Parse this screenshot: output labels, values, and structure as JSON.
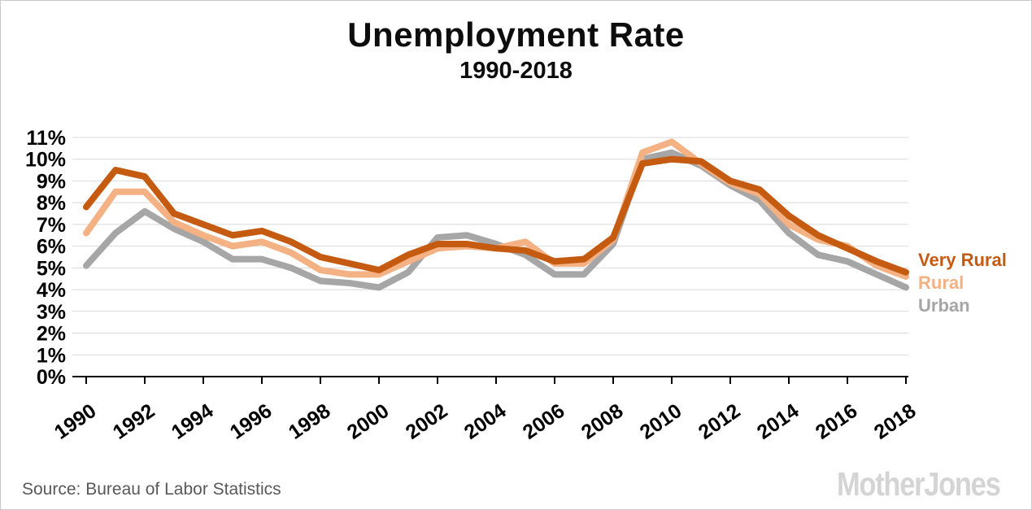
{
  "title": "Unemployment Rate",
  "subtitle": "1990-2018",
  "source": "Source: Bureau of Labor Statistics",
  "logo": "MotherJones",
  "colors": {
    "very_rural": "#C55A11",
    "rural": "#F4B183",
    "urban": "#A6A6A6",
    "gridline": "#D9D9D9",
    "axis": "#000000",
    "tick_label": "#000000",
    "source_text": "#595959",
    "logo_gray": "#D4D4D4"
  },
  "chart_data": {
    "type": "line",
    "title": "Unemployment Rate",
    "subtitle": "1990-2018",
    "xlabel": "",
    "ylabel": "",
    "ylim": [
      0,
      11
    ],
    "ytick_step": 1,
    "ytick_suffix": "%",
    "grid": true,
    "legend_position": "right",
    "xticks": [
      1990,
      1992,
      1994,
      1996,
      1998,
      2000,
      2002,
      2004,
      2006,
      2008,
      2010,
      2012,
      2014,
      2016,
      2018
    ],
    "x": [
      1990,
      1991,
      1992,
      1993,
      1994,
      1995,
      1996,
      1997,
      1998,
      1999,
      2000,
      2001,
      2002,
      2003,
      2004,
      2005,
      2006,
      2007,
      2008,
      2009,
      2010,
      2011,
      2012,
      2013,
      2014,
      2015,
      2016,
      2017,
      2018
    ],
    "series": [
      {
        "name": "Urban",
        "color": "#A6A6A6",
        "values": [
          5.1,
          6.6,
          7.6,
          6.8,
          6.2,
          5.4,
          5.4,
          5.0,
          4.4,
          4.3,
          4.1,
          4.8,
          6.4,
          6.5,
          6.1,
          5.6,
          4.7,
          4.7,
          6.1,
          10.0,
          10.3,
          9.7,
          8.8,
          8.1,
          6.6,
          5.6,
          5.3,
          4.7,
          4.1
        ]
      },
      {
        "name": "Rural",
        "color": "#F4B183",
        "values": [
          6.6,
          8.5,
          8.5,
          7.1,
          6.5,
          6.0,
          6.2,
          5.7,
          4.9,
          4.7,
          4.7,
          5.3,
          5.9,
          6.0,
          5.9,
          6.2,
          5.2,
          5.2,
          6.3,
          10.3,
          10.8,
          9.8,
          8.9,
          8.4,
          7.0,
          6.3,
          6.0,
          5.1,
          4.6
        ]
      },
      {
        "name": "Very Rural",
        "color": "#C55A11",
        "values": [
          7.8,
          9.5,
          9.2,
          7.5,
          7.0,
          6.5,
          6.7,
          6.2,
          5.5,
          5.2,
          4.9,
          5.6,
          6.1,
          6.1,
          5.9,
          5.8,
          5.3,
          5.4,
          6.4,
          9.8,
          10.0,
          9.9,
          9.0,
          8.6,
          7.4,
          6.5,
          5.9,
          5.3,
          4.8
        ]
      }
    ],
    "legend_order": [
      "Very Rural",
      "Rural",
      "Urban"
    ]
  }
}
